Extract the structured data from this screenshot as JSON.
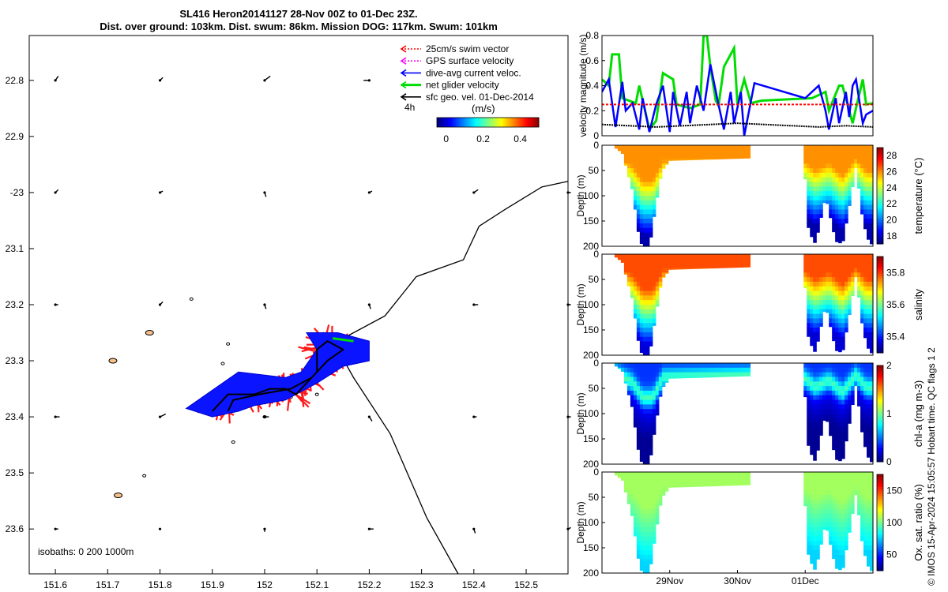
{
  "title": {
    "line1": "SL416 Heron20141127 28-Nov 00Z to 01-Dec 23Z.",
    "line2": "Dist. over ground: 103km. Dist. swum: 86km. Mission DOG: 117km. Swum: 101km"
  },
  "credit": "© IMOS 15-Apr-2024 15:05:57 Hobart time. QC flags 1  2",
  "colors": {
    "swim": "#ff0000",
    "gps": "#ff00ff",
    "current": "#0000ff",
    "net": "#00dd00",
    "geo": "#000000",
    "track_fill": "#ff1a1a",
    "track_blue": "#0a14ff"
  },
  "chart_data": [
    {
      "type": "map",
      "name": "track-map",
      "xlim": [
        151.55,
        152.58
      ],
      "ylim": [
        -23.68,
        -22.72
      ],
      "xticks": [
        151.6,
        151.7,
        151.8,
        151.9,
        152.0,
        152.1,
        152.2,
        152.3,
        152.4,
        152.5
      ],
      "xtick_labels": [
        "151.6",
        "151.7",
        "151.8",
        "151.9",
        "152",
        "152.1",
        "152.2",
        "152.3",
        "152.4",
        "152.5"
      ],
      "yticks": [
        -22.8,
        -22.9,
        -23.0,
        -23.1,
        -23.2,
        -23.3,
        -23.4,
        -23.5,
        -23.6
      ],
      "ytick_labels": [
        "22.8",
        "22.9",
        "-23",
        "23.1",
        "23.2",
        "23.3",
        "23.4",
        "23.5",
        "23.6"
      ],
      "legend": {
        "items": [
          {
            "key": "swim",
            "label": "25cm/s swim vector"
          },
          {
            "key": "gps",
            "label": "GPS surface velocity"
          },
          {
            "key": "current",
            "label": "dive-avg current veloc."
          },
          {
            "key": "net",
            "label": "net glider velocity"
          },
          {
            "key": "geo",
            "label": "sfc geo. vel. 01-Dec-2014"
          }
        ],
        "time_label": "4h",
        "units_label": "(m/s)",
        "colorbar_ticks": [
          0,
          0.2,
          0.4
        ],
        "colorbar_tick_labels": [
          "0",
          "0.2",
          "0.4"
        ],
        "colorbar_range": [
          -0.05,
          0.5
        ]
      },
      "isobath_label": "isobaths: 0   200  1000m",
      "track": [
        [
          151.9,
          -23.39
        ],
        [
          151.93,
          -23.36
        ],
        [
          151.98,
          -23.36
        ],
        [
          152.01,
          -23.35
        ],
        [
          152.04,
          -23.35
        ],
        [
          152.06,
          -23.36
        ],
        [
          152.08,
          -23.34
        ],
        [
          152.1,
          -23.32
        ],
        [
          152.1,
          -23.28
        ],
        [
          152.12,
          -23.265
        ],
        [
          152.15,
          -23.28
        ],
        [
          152.12,
          -23.3
        ],
        [
          152.09,
          -23.33
        ],
        [
          152.05,
          -23.35
        ],
        [
          151.99,
          -23.36
        ],
        [
          151.94,
          -23.37
        ],
        [
          151.93,
          -23.39
        ]
      ],
      "isobath_1000m": [
        [
          152.58,
          -22.98
        ],
        [
          152.53,
          -22.99
        ],
        [
          152.46,
          -23.03
        ],
        [
          152.41,
          -23.06
        ],
        [
          152.38,
          -23.12
        ],
        [
          152.29,
          -23.15
        ],
        [
          152.23,
          -23.22
        ],
        [
          152.15,
          -23.26
        ],
        [
          152.14,
          -23.28
        ],
        [
          152.17,
          -23.33
        ],
        [
          152.24,
          -23.43
        ],
        [
          152.31,
          -23.58
        ],
        [
          152.37,
          -23.68
        ]
      ],
      "islands": [
        [
          151.71,
          -23.3
        ],
        [
          151.78,
          -23.25
        ],
        [
          151.97,
          -23.33
        ],
        [
          151.93,
          -23.37
        ],
        [
          151.94,
          -23.445
        ],
        [
          151.72,
          -23.54
        ],
        [
          151.77,
          -23.505
        ],
        [
          151.93,
          -23.27
        ],
        [
          151.92,
          -23.305
        ],
        [
          151.86,
          -23.19
        ],
        [
          152.0,
          -23.4
        ],
        [
          152.05,
          -23.365
        ],
        [
          152.1,
          -23.36
        ]
      ],
      "geo_vectors": [
        {
          "lon": 151.6,
          "lat": -22.8,
          "u": 0.02,
          "v": 0.03
        },
        {
          "lon": 151.8,
          "lat": -22.8,
          "u": 0.02,
          "v": 0.02
        },
        {
          "lon": 152.0,
          "lat": -22.8,
          "u": 0.04,
          "v": 0.03
        },
        {
          "lon": 152.2,
          "lat": -22.8,
          "u": -0.04,
          "v": 0.0
        },
        {
          "lon": 151.6,
          "lat": -23.0,
          "u": 0.02,
          "v": 0.02
        },
        {
          "lon": 151.8,
          "lat": -23.0,
          "u": 0.02,
          "v": 0.01
        },
        {
          "lon": 152.0,
          "lat": -23.0,
          "u": 0.01,
          "v": -0.03
        },
        {
          "lon": 152.2,
          "lat": -23.0,
          "u": 0.02,
          "v": 0.01
        },
        {
          "lon": 152.4,
          "lat": -23.0,
          "u": 0.03,
          "v": 0.02
        },
        {
          "lon": 152.58,
          "lat": -23.0,
          "u": 0.02,
          "v": 0.0
        },
        {
          "lon": 151.6,
          "lat": -23.2,
          "u": 0.02,
          "v": 0.0
        },
        {
          "lon": 151.8,
          "lat": -23.2,
          "u": 0.02,
          "v": 0.02
        },
        {
          "lon": 152.0,
          "lat": -23.2,
          "u": 0.01,
          "v": -0.03
        },
        {
          "lon": 152.2,
          "lat": -23.2,
          "u": 0.01,
          "v": -0.03
        },
        {
          "lon": 152.4,
          "lat": -23.2,
          "u": 0.03,
          "v": 0.0
        },
        {
          "lon": 152.58,
          "lat": -23.2,
          "u": 0.02,
          "v": 0.0
        },
        {
          "lon": 151.6,
          "lat": -23.4,
          "u": 0.03,
          "v": 0.0
        },
        {
          "lon": 151.8,
          "lat": -23.4,
          "u": 0.04,
          "v": 0.02
        },
        {
          "lon": 152.0,
          "lat": -23.4,
          "u": 0.03,
          "v": 0.0
        },
        {
          "lon": 152.2,
          "lat": -23.4,
          "u": 0.02,
          "v": -0.03
        },
        {
          "lon": 152.4,
          "lat": -23.4,
          "u": 0.02,
          "v": 0.0
        },
        {
          "lon": 152.58,
          "lat": -23.4,
          "u": 0.02,
          "v": 0.0
        },
        {
          "lon": 151.6,
          "lat": -23.6,
          "u": 0.02,
          "v": 0.0
        },
        {
          "lon": 151.8,
          "lat": -23.6,
          "u": 0.0,
          "v": 0.0
        },
        {
          "lon": 152.0,
          "lat": -23.6,
          "u": 0.0,
          "v": -0.02
        },
        {
          "lon": 152.2,
          "lat": -23.6,
          "u": 0.03,
          "v": 0.0
        },
        {
          "lon": 152.4,
          "lat": -23.6,
          "u": 0.01,
          "v": -0.03
        },
        {
          "lon": 152.58,
          "lat": -23.6,
          "u": 0.02,
          "v": 0.01
        }
      ]
    },
    {
      "type": "line",
      "name": "velocity-magnitude",
      "ylabel": "velocity magnitude (m/s)",
      "ylim": [
        0,
        0.8
      ],
      "yticks": [
        0,
        0.2,
        0.4,
        0.6,
        0.8
      ],
      "ytick_labels": [
        "0",
        "0.2",
        "0.4",
        "0.6",
        "0.8"
      ],
      "xlim": [
        0,
        4
      ],
      "series": [
        {
          "name": "net glider velocity",
          "key": "net",
          "x": [
            0,
            0.1,
            0.15,
            0.25,
            0.3,
            0.5,
            0.55,
            0.7,
            0.8,
            0.9,
            1.05,
            1.1,
            1.3,
            1.45,
            1.5,
            1.55,
            1.6,
            1.68,
            1.72,
            1.8,
            1.95,
            2.0,
            2.1,
            2.2,
            2.35,
            3.1,
            3.3,
            3.35,
            3.5,
            3.55,
            3.7,
            3.75,
            3.85,
            3.9,
            4.0
          ],
          "y": [
            0.45,
            0.4,
            0.65,
            0.65,
            0.3,
            0.26,
            0.4,
            0.05,
            0.12,
            0.5,
            0.45,
            0.25,
            0.22,
            0.25,
            0.8,
            0.8,
            0.55,
            0.28,
            0.24,
            0.55,
            0.7,
            0.25,
            0.45,
            0.26,
            0.28,
            0.3,
            0.35,
            0.2,
            0.4,
            0.4,
            0.1,
            0.22,
            0.45,
            0.25,
            0.26
          ]
        },
        {
          "name": "dive-avg current veloc.",
          "key": "current",
          "x": [
            0,
            0.1,
            0.2,
            0.3,
            0.35,
            0.45,
            0.55,
            0.6,
            0.7,
            0.8,
            0.9,
            1.0,
            1.05,
            1.15,
            1.25,
            1.3,
            1.4,
            1.5,
            1.6,
            1.7,
            1.8,
            1.9,
            1.95,
            2.05,
            2.1,
            2.25,
            3.0,
            3.2,
            3.3,
            3.35,
            3.45,
            3.5,
            3.6,
            3.65,
            3.7,
            3.75,
            3.85,
            3.9,
            4.0
          ],
          "y": [
            0.35,
            0.45,
            0.07,
            0.43,
            0.2,
            0.26,
            0.05,
            0.3,
            0.03,
            0.25,
            0.4,
            0.03,
            0.35,
            0.08,
            0.35,
            0.1,
            0.4,
            0.2,
            0.57,
            0.3,
            0.05,
            0.35,
            0.1,
            0.35,
            0.0,
            0.42,
            0.3,
            0.4,
            0.2,
            0.05,
            0.3,
            0.1,
            0.35,
            0.15,
            0.4,
            0.45,
            0.1,
            0.17,
            0.2
          ]
        },
        {
          "name": "25cm/s swim vector",
          "key": "swim",
          "x": [
            0,
            4
          ],
          "y": [
            0.25,
            0.25
          ]
        },
        {
          "name": "sfc geo. vel.",
          "key": "geo",
          "x": [
            0,
            0.4,
            0.8,
            1.2,
            1.6,
            2.0,
            2.4,
            2.8,
            3.2,
            3.6,
            4.0
          ],
          "y": [
            0.09,
            0.08,
            0.07,
            0.08,
            0.09,
            0.1,
            0.09,
            0.08,
            0.07,
            0.08,
            0.07
          ]
        }
      ]
    },
    {
      "type": "heatmap",
      "name": "temperature-section",
      "ylabel": "Depth (m)",
      "clabel": "temperature (°C)",
      "ylim": [
        0,
        200
      ],
      "yticks": [
        0,
        50,
        100,
        150,
        200
      ],
      "ytick_labels": [
        "0",
        "50",
        "100",
        "150",
        "200"
      ],
      "crange": [
        17,
        29
      ],
      "cticks": [
        18,
        20,
        22,
        24,
        26,
        28
      ],
      "ctick_labels": [
        "18",
        "20",
        "22",
        "24",
        "26",
        "28"
      ],
      "surface_value": 25.8,
      "deep_value": 17.5
    },
    {
      "type": "heatmap",
      "name": "salinity-section",
      "ylabel": "Depth (m)",
      "clabel": "salinity",
      "ylim": [
        0,
        200
      ],
      "yticks": [
        0,
        50,
        100,
        150,
        200
      ],
      "ytick_labels": [
        "0",
        "50",
        "100",
        "150",
        "200"
      ],
      "crange": [
        35.3,
        35.9
      ],
      "cticks": [
        35.4,
        35.6,
        35.8
      ],
      "ctick_labels": [
        "35.4",
        "35.6",
        "35.8"
      ],
      "surface_value": 35.78,
      "deep_value": 35.35
    },
    {
      "type": "heatmap",
      "name": "chla-section",
      "ylabel": "Depth (m)",
      "clabel": "chl-a (mg m-3)",
      "ylim": [
        0,
        200
      ],
      "yticks": [
        0,
        50,
        100,
        150,
        200
      ],
      "ytick_labels": [
        "0",
        "50",
        "100",
        "150",
        "200"
      ],
      "crange": [
        0,
        2
      ],
      "cticks": [
        0,
        1,
        2
      ],
      "ctick_labels": [
        "0",
        "1",
        "2"
      ],
      "surface_value": 0.4,
      "deep_value": 0.05
    },
    {
      "type": "heatmap",
      "name": "oxygen-section",
      "ylabel": "Depth (m)",
      "clabel": "Ox. sat. ratio (%)",
      "ylim": [
        0,
        200
      ],
      "yticks": [
        0,
        50,
        100,
        150,
        200
      ],
      "ytick_labels": [
        "0",
        "50",
        "100",
        "150",
        "200"
      ],
      "crange": [
        25,
        175
      ],
      "cticks": [
        50,
        100,
        150
      ],
      "ctick_labels": [
        "50",
        "100",
        "150"
      ],
      "surface_value": 105,
      "deep_value": 75,
      "xticks": [
        1.0,
        2.0,
        3.0
      ],
      "xtick_labels": [
        "29Nov",
        "30Nov",
        "01Dec"
      ]
    }
  ],
  "sections": {
    "xlim": [
      0,
      4
    ],
    "gap": [
      2.2,
      2.98
    ],
    "bottom": [
      [
        0.2,
        5
      ],
      [
        0.3,
        15
      ],
      [
        0.45,
        90
      ],
      [
        0.55,
        185
      ],
      [
        0.6,
        200
      ],
      [
        0.7,
        200
      ],
      [
        0.78,
        130
      ],
      [
        0.88,
        50
      ],
      [
        1.0,
        30
      ],
      [
        2.2,
        25
      ],
      [
        2.98,
        25
      ],
      [
        3.05,
        170
      ],
      [
        3.15,
        195
      ],
      [
        3.3,
        100
      ],
      [
        3.45,
        190
      ],
      [
        3.55,
        195
      ],
      [
        3.65,
        120
      ],
      [
        3.75,
        40
      ],
      [
        3.85,
        150
      ],
      [
        3.95,
        195
      ],
      [
        4.0,
        195
      ]
    ],
    "thermo": [
      [
        0.2,
        20
      ],
      [
        0.45,
        40
      ],
      [
        0.6,
        70
      ],
      [
        0.75,
        70
      ],
      [
        0.9,
        30
      ],
      [
        2.2,
        25
      ],
      [
        2.98,
        30
      ],
      [
        3.15,
        50
      ],
      [
        3.35,
        35
      ],
      [
        3.55,
        60
      ],
      [
        3.75,
        25
      ],
      [
        3.9,
        50
      ],
      [
        4.0,
        50
      ]
    ]
  }
}
